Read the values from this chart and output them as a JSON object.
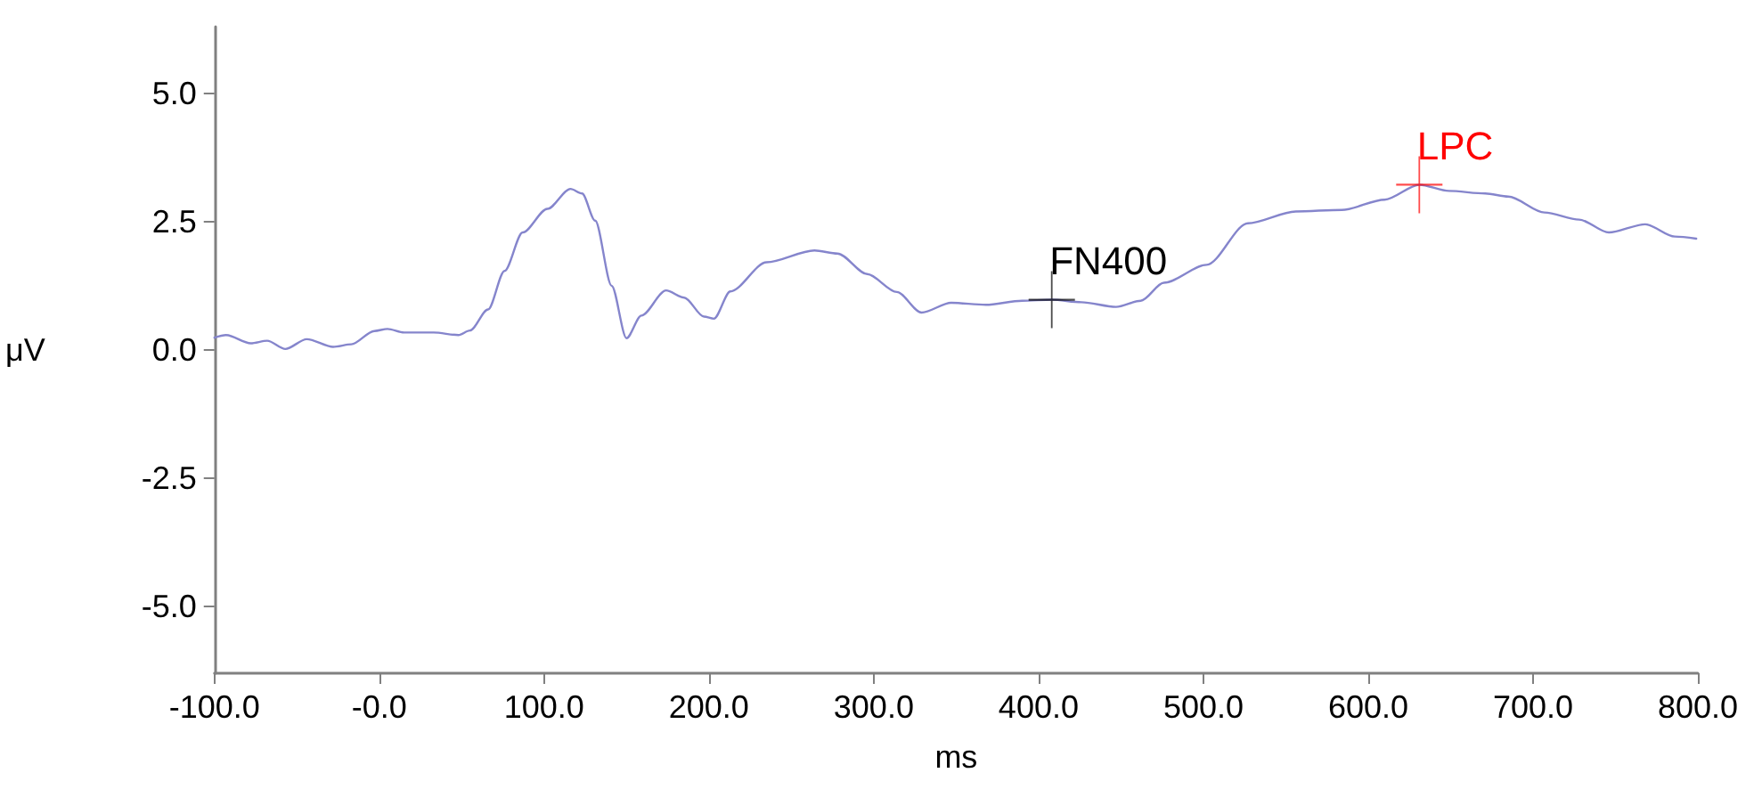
{
  "chart_data": {
    "type": "line",
    "xlabel": "ms",
    "ylabel": "μV",
    "x": [
      -100,
      -93,
      -78,
      -68,
      -57,
      -44,
      -28,
      -17,
      -3,
      5,
      15,
      33,
      48,
      55,
      66,
      76,
      87,
      102,
      116,
      123,
      131,
      141,
      150,
      159,
      174,
      185,
      197,
      203,
      213,
      235,
      264,
      278,
      296,
      314,
      329,
      347,
      368,
      390,
      408,
      426,
      447,
      462,
      476,
      502,
      527,
      556,
      584,
      610,
      631,
      649,
      671,
      685,
      707,
      728,
      746,
      768,
      786,
      799
    ],
    "series": [
      {
        "color": "#8585cc",
        "values": [
          0.24,
          0.29,
          0.13,
          0.18,
          0.02,
          0.21,
          0.06,
          0.11,
          0.37,
          0.41,
          0.34,
          0.34,
          0.29,
          0.38,
          0.79,
          1.54,
          2.29,
          2.75,
          3.14,
          3.05,
          2.52,
          1.25,
          0.23,
          0.67,
          1.16,
          1.02,
          0.65,
          0.61,
          1.14,
          1.71,
          1.94,
          1.88,
          1.48,
          1.13,
          0.73,
          0.92,
          0.88,
          0.96,
          0.98,
          0.93,
          0.84,
          0.96,
          1.31,
          1.66,
          2.47,
          2.7,
          2.73,
          2.93,
          3.22,
          3.1,
          3.05,
          2.99,
          2.68,
          2.54,
          2.29,
          2.45,
          2.21,
          2.17
        ]
      }
    ],
    "annotations": [
      {
        "text": "FN400",
        "x": 408,
        "y": 0.98
      },
      {
        "text": "LPC",
        "x": 631,
        "y": 3.22
      }
    ],
    "xlim": [
      -100,
      800
    ],
    "xticks": [
      {
        "value": -100,
        "label": "-100.0"
      },
      {
        "value": 0,
        "label": "-0.0"
      },
      {
        "value": 100,
        "label": "100.0"
      },
      {
        "value": 200,
        "label": "200.0"
      },
      {
        "value": 300,
        "label": "300.0"
      },
      {
        "value": 400,
        "label": "400.0"
      },
      {
        "value": 500,
        "label": "500.0"
      },
      {
        "value": 600,
        "label": "600.0"
      },
      {
        "value": 700,
        "label": "700.0"
      },
      {
        "value": 800,
        "label": "800.0"
      }
    ],
    "ylim": [
      -6.3,
      6.3
    ],
    "yticks": [
      {
        "value": -5,
        "label": "-5.0"
      },
      {
        "value": -2.5,
        "label": "-2.5"
      },
      {
        "value": 0,
        "label": "0.0"
      },
      {
        "value": 2.5,
        "label": "2.5"
      },
      {
        "value": 5,
        "label": "5.0"
      }
    ],
    "grid": false,
    "marker": "none",
    "line_style": "solid"
  }
}
